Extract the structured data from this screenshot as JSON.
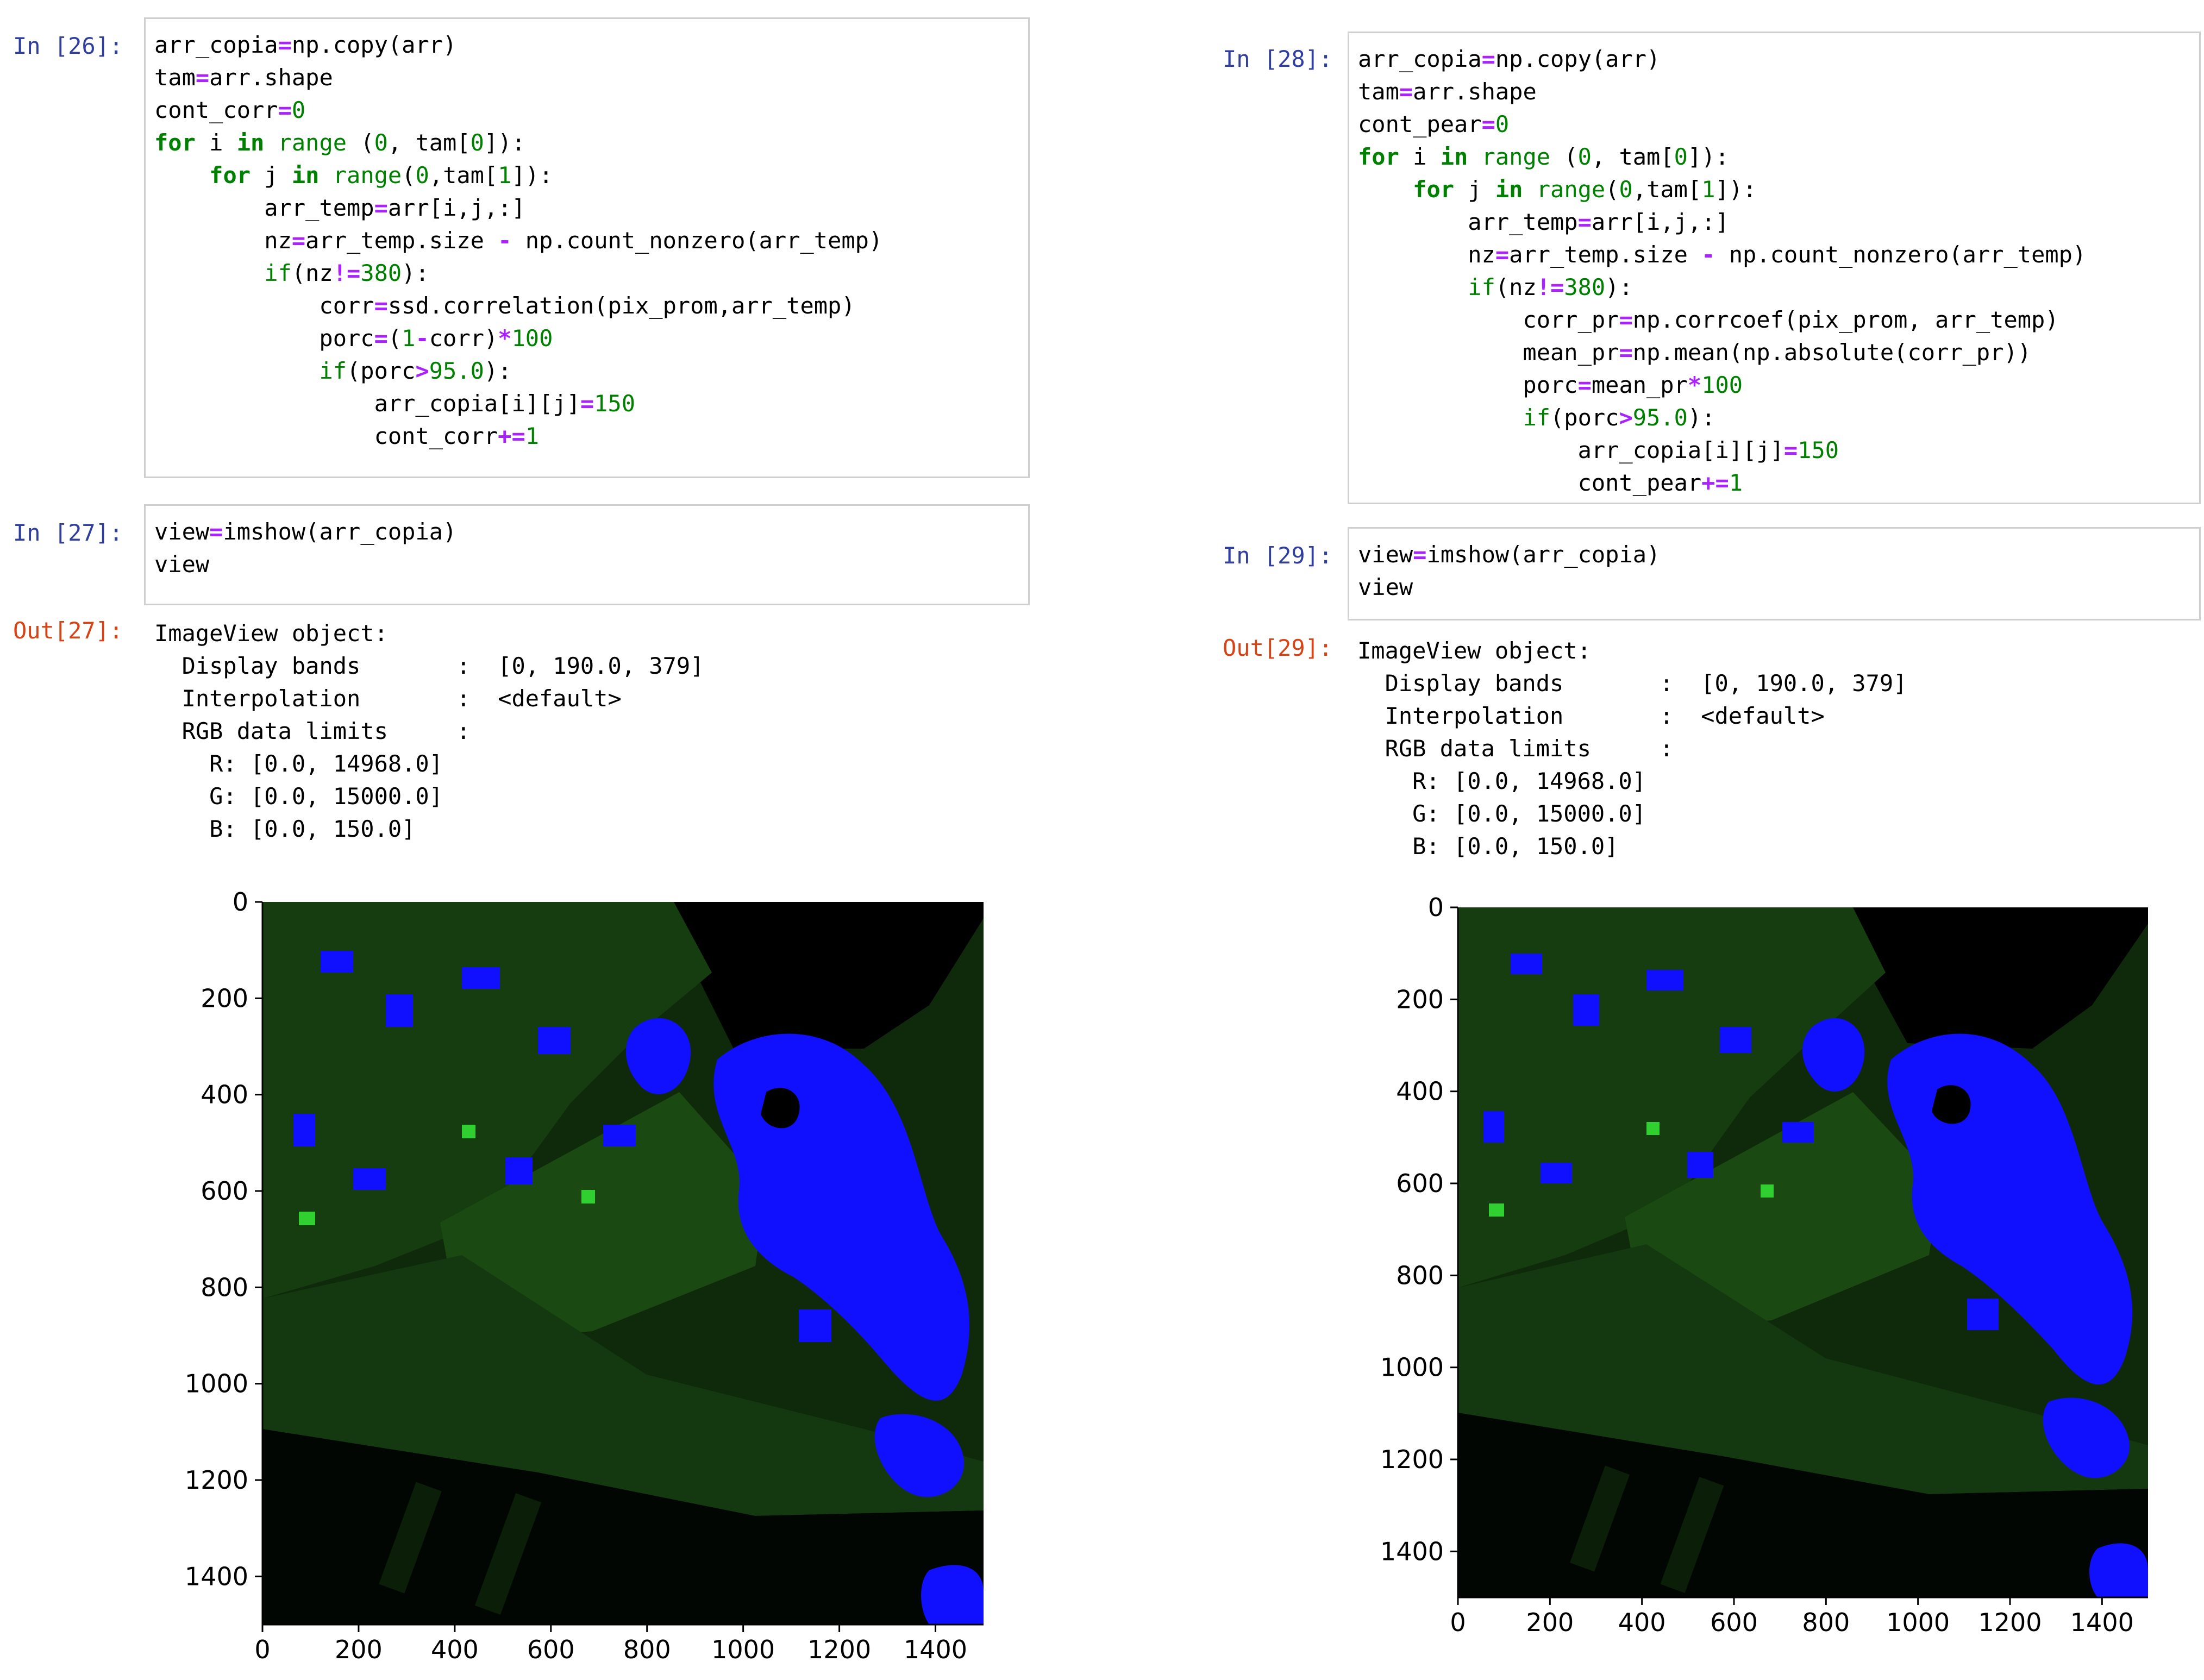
{
  "left": {
    "cell1": {
      "prompt": "In [26]:",
      "lines": [
        [
          [
            "t",
            "arr_copia"
          ],
          [
            "o",
            "="
          ],
          [
            "t",
            "np.copy(arr)"
          ]
        ],
        [
          [
            "t",
            "tam"
          ],
          [
            "o",
            "="
          ],
          [
            "t",
            "arr.shape"
          ]
        ],
        [
          [
            "t",
            "cont_corr"
          ],
          [
            "o",
            "="
          ],
          [
            "n",
            "0"
          ]
        ],
        [
          [
            "k",
            "for"
          ],
          [
            "t",
            " i "
          ],
          [
            "k",
            "in"
          ],
          [
            "t",
            " "
          ],
          [
            "n",
            "range"
          ],
          [
            "t",
            " ("
          ],
          [
            "n",
            "0"
          ],
          [
            "t",
            ", tam["
          ],
          [
            "n",
            "0"
          ],
          [
            "t",
            "]):"
          ]
        ],
        [
          [
            "t",
            "    "
          ],
          [
            "k",
            "for"
          ],
          [
            "t",
            " j "
          ],
          [
            "k",
            "in"
          ],
          [
            "t",
            " "
          ],
          [
            "n",
            "range"
          ],
          [
            "t",
            "("
          ],
          [
            "n",
            "0"
          ],
          [
            "t",
            ",tam["
          ],
          [
            "n",
            "1"
          ],
          [
            "t",
            "]):"
          ]
        ],
        [
          [
            "t",
            "        arr_temp"
          ],
          [
            "o",
            "="
          ],
          [
            "t",
            "arr[i,j,:]"
          ]
        ],
        [
          [
            "t",
            "        nz"
          ],
          [
            "o",
            "="
          ],
          [
            "t",
            "arr_temp.size "
          ],
          [
            "o",
            "-"
          ],
          [
            "t",
            " np.count_nonzero(arr_temp)"
          ]
        ],
        [
          [
            "t",
            "        "
          ],
          [
            "n",
            "if"
          ],
          [
            "t",
            "(nz"
          ],
          [
            "o",
            "!="
          ],
          [
            "n",
            "380"
          ],
          [
            "t",
            "):"
          ]
        ],
        [
          [
            "t",
            "            corr"
          ],
          [
            "o",
            "="
          ],
          [
            "t",
            "ssd.correlation(pix_prom,arr_temp)"
          ]
        ],
        [
          [
            "t",
            "            porc"
          ],
          [
            "o",
            "="
          ],
          [
            "t",
            "("
          ],
          [
            "n",
            "1"
          ],
          [
            "o",
            "-"
          ],
          [
            "t",
            "corr)"
          ],
          [
            "o",
            "*"
          ],
          [
            "n",
            "100"
          ]
        ],
        [
          [
            "t",
            "            "
          ],
          [
            "n",
            "if"
          ],
          [
            "t",
            "(porc"
          ],
          [
            "o",
            ">"
          ],
          [
            "n",
            "95.0"
          ],
          [
            "t",
            "):"
          ]
        ],
        [
          [
            "t",
            "                arr_copia[i][j]"
          ],
          [
            "o",
            "="
          ],
          [
            "n",
            "150"
          ]
        ],
        [
          [
            "t",
            "                cont_corr"
          ],
          [
            "o",
            "+="
          ],
          [
            "n",
            "1"
          ]
        ]
      ]
    },
    "cell2": {
      "prompt": "In [27]:",
      "lines": [
        [
          [
            "t",
            "view"
          ],
          [
            "o",
            "="
          ],
          [
            "t",
            "imshow(arr_copia)"
          ]
        ],
        [
          [
            "t",
            "view"
          ]
        ]
      ]
    },
    "output": {
      "prompt": "Out[27]:",
      "text": "ImageView object:\n  Display bands       :  [0, 190.0, 379]\n  Interpolation       :  <default>\n  RGB data limits     :\n    R: [0.0, 14968.0]\n    G: [0.0, 15000.0]\n    B: [0.0, 150.0]"
    }
  },
  "right": {
    "cell1": {
      "prompt": "In [28]:",
      "lines": [
        [
          [
            "t",
            "arr_copia"
          ],
          [
            "o",
            "="
          ],
          [
            "t",
            "np.copy(arr)"
          ]
        ],
        [
          [
            "t",
            "tam"
          ],
          [
            "o",
            "="
          ],
          [
            "t",
            "arr.shape"
          ]
        ],
        [
          [
            "t",
            "cont_pear"
          ],
          [
            "o",
            "="
          ],
          [
            "n",
            "0"
          ]
        ],
        [
          [
            "k",
            "for"
          ],
          [
            "t",
            " i "
          ],
          [
            "k",
            "in"
          ],
          [
            "t",
            " "
          ],
          [
            "n",
            "range"
          ],
          [
            "t",
            " ("
          ],
          [
            "n",
            "0"
          ],
          [
            "t",
            ", tam["
          ],
          [
            "n",
            "0"
          ],
          [
            "t",
            "]):"
          ]
        ],
        [
          [
            "t",
            "    "
          ],
          [
            "k",
            "for"
          ],
          [
            "t",
            " j "
          ],
          [
            "k",
            "in"
          ],
          [
            "t",
            " "
          ],
          [
            "n",
            "range"
          ],
          [
            "t",
            "("
          ],
          [
            "n",
            "0"
          ],
          [
            "t",
            ",tam["
          ],
          [
            "n",
            "1"
          ],
          [
            "t",
            "]):"
          ]
        ],
        [
          [
            "t",
            "        arr_temp"
          ],
          [
            "o",
            "="
          ],
          [
            "t",
            "arr[i,j,:]"
          ]
        ],
        [
          [
            "t",
            "        nz"
          ],
          [
            "o",
            "="
          ],
          [
            "t",
            "arr_temp.size "
          ],
          [
            "o",
            "-"
          ],
          [
            "t",
            " np.count_nonzero(arr_temp)"
          ]
        ],
        [
          [
            "t",
            "        "
          ],
          [
            "n",
            "if"
          ],
          [
            "t",
            "(nz"
          ],
          [
            "o",
            "!="
          ],
          [
            "n",
            "380"
          ],
          [
            "t",
            "):"
          ]
        ],
        [
          [
            "t",
            "            corr_pr"
          ],
          [
            "o",
            "="
          ],
          [
            "t",
            "np.corrcoef(pix_prom, arr_temp)"
          ]
        ],
        [
          [
            "t",
            "            mean_pr"
          ],
          [
            "o",
            "="
          ],
          [
            "t",
            "np.mean(np.absolute(corr_pr))"
          ]
        ],
        [
          [
            "t",
            "            porc"
          ],
          [
            "o",
            "="
          ],
          [
            "t",
            "mean_pr"
          ],
          [
            "o",
            "*"
          ],
          [
            "n",
            "100"
          ]
        ],
        [
          [
            "t",
            "            "
          ],
          [
            "n",
            "if"
          ],
          [
            "t",
            "(porc"
          ],
          [
            "o",
            ">"
          ],
          [
            "n",
            "95.0"
          ],
          [
            "t",
            "):"
          ]
        ],
        [
          [
            "t",
            "                arr_copia[i][j]"
          ],
          [
            "o",
            "="
          ],
          [
            "n",
            "150"
          ]
        ],
        [
          [
            "t",
            "                cont_pear"
          ],
          [
            "o",
            "+="
          ],
          [
            "n",
            "1"
          ]
        ]
      ]
    },
    "cell2": {
      "prompt": "In [29]:",
      "lines": [
        [
          [
            "t",
            "view"
          ],
          [
            "o",
            "="
          ],
          [
            "t",
            "imshow(arr_copia)"
          ]
        ],
        [
          [
            "t",
            "view"
          ]
        ]
      ]
    },
    "output": {
      "prompt": "Out[29]:",
      "text": "ImageView object:\n  Display bands       :  [0, 190.0, 379]\n  Interpolation       :  <default>\n  RGB data limits     :\n    R: [0.0, 14968.0]\n    G: [0.0, 15000.0]\n    B: [0.0, 150.0]"
    }
  },
  "chart_data": [
    {
      "type": "heatmap",
      "description_colors": {
        "background": "#000000",
        "vegetation_green": "#1e5a12",
        "classified_blue": "#1010ff"
      },
      "x_ticks": [
        "0",
        "200",
        "400",
        "600",
        "800",
        "1000",
        "1200",
        "1400"
      ],
      "y_ticks": [
        "0",
        "200",
        "400",
        "600",
        "800",
        "1000",
        "1200",
        "1400"
      ],
      "xlim": [
        0,
        1500
      ],
      "ylim": [
        1500,
        0
      ]
    },
    {
      "type": "heatmap",
      "description_colors": {
        "background": "#000000",
        "vegetation_green": "#1e5a12",
        "classified_blue": "#1010ff"
      },
      "x_ticks": [
        "0",
        "200",
        "400",
        "600",
        "800",
        "1000",
        "1200",
        "1400"
      ],
      "y_ticks": [
        "0",
        "200",
        "400",
        "600",
        "800",
        "1000",
        "1200",
        "1400"
      ],
      "xlim": [
        0,
        1500
      ],
      "ylim": [
        1500,
        0
      ]
    }
  ]
}
